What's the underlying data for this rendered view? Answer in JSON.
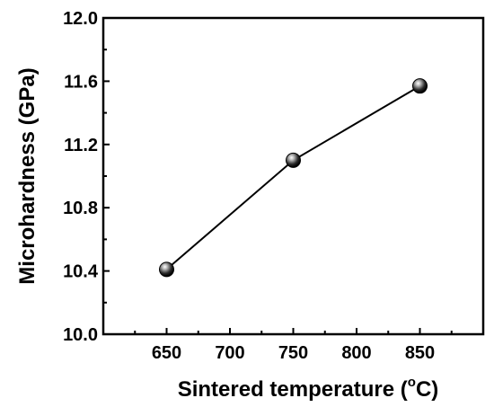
{
  "chart_data": {
    "type": "line",
    "title": "",
    "xlabel": {
      "text": "Sintered temperature (",
      "sup": "o",
      "unit": "C)"
    },
    "ylabel": "Microhardness (GPa)",
    "xlim": [
      600,
      900
    ],
    "ylim": [
      10.0,
      12.0
    ],
    "xticks": [
      "650",
      "700",
      "750",
      "800",
      "850"
    ],
    "xtick_values": [
      650,
      700,
      750,
      800,
      850
    ],
    "yticks": [
      "10.0",
      "10.4",
      "10.8",
      "11.2",
      "11.6",
      "12.0"
    ],
    "ytick_values": [
      10.0,
      10.4,
      10.8,
      11.2,
      11.6,
      12.0
    ],
    "grid": false,
    "series": [
      {
        "x": [
          650,
          750,
          850
        ],
        "y": [
          10.41,
          11.1,
          11.57
        ]
      }
    ],
    "colors": {
      "line": "#000000",
      "marker_dark": "#000000",
      "marker_light": "#bdbdbd"
    }
  }
}
